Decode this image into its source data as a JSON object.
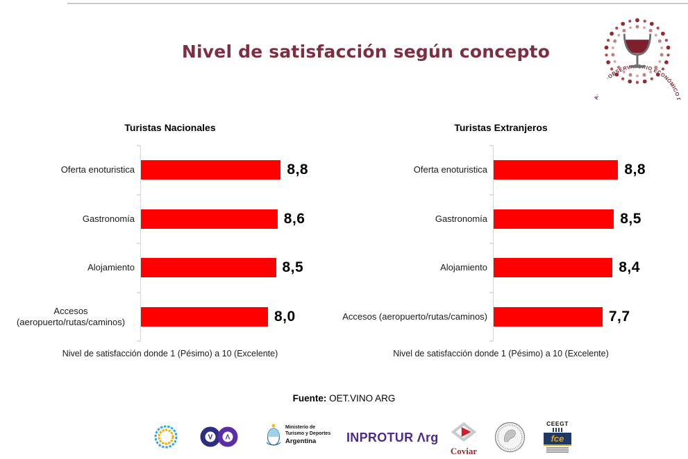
{
  "page": {
    "title": "Nivel de satisfacción según concepto",
    "title_color": "#7c2f40",
    "source_label": "Fuente:",
    "source_value": " OET.VINO ARG"
  },
  "observatorio_logo": {
    "ring_text": "·OBSERVATORIO ECONÓMICO DE TURISMO DEL VINO DE LA REPÚBLICA ARGENTINA·",
    "colors": {
      "ring_text": "#7b2a33",
      "dot_dark_a": "#8e2b33",
      "dot_dark_b": "#a84a50",
      "dot_light_a": "#c08185",
      "dot_light_b": "#d5a6a9",
      "wine": "#7e1f2b",
      "glass": "#6e6e6e"
    }
  },
  "chart_data": [
    {
      "type": "bar",
      "orientation": "horizontal",
      "title": "Turistas Nacionales",
      "categories": [
        "Oferta enoturistica",
        "Gastronomía",
        "Alojamiento",
        "Accesos (aeropuerto/rutas/caminos)"
      ],
      "values": [
        8.8,
        8.6,
        8.5,
        8.0
      ],
      "value_labels": [
        "8,8",
        "8,6",
        "8,5",
        "8,0"
      ],
      "xlim": [
        0,
        10
      ],
      "bar_color": "#ff0000",
      "grid": false,
      "legend": false,
      "note": "Nivel de satisfacción donde 1 (Pésimo) a 10 (Excelente)"
    },
    {
      "type": "bar",
      "orientation": "horizontal",
      "title": "Turistas Extranjeros",
      "categories": [
        "Oferta enoturistica",
        "Gastronomía",
        "Alojamiento",
        "Accesos (aeropuerto/rutas/caminos)"
      ],
      "values": [
        8.8,
        8.5,
        8.4,
        7.7
      ],
      "value_labels": [
        "8,8",
        "8,5",
        "8,4",
        "7,7"
      ],
      "xlim": [
        0,
        10
      ],
      "bar_color": "#ff0000",
      "grid": false,
      "legend": false,
      "note": "Nivel de satisfacción donde 1 (Pésimo) a 10 (Excelente)"
    }
  ],
  "partners": {
    "ministerio_lines": [
      "Ministerio de",
      "Turismo y Deportes",
      "Argentina"
    ],
    "inprotur": "INPROTUR Λrg",
    "coviar": "Coviar",
    "ceegt": "CEEGT",
    "fce": "fce"
  }
}
